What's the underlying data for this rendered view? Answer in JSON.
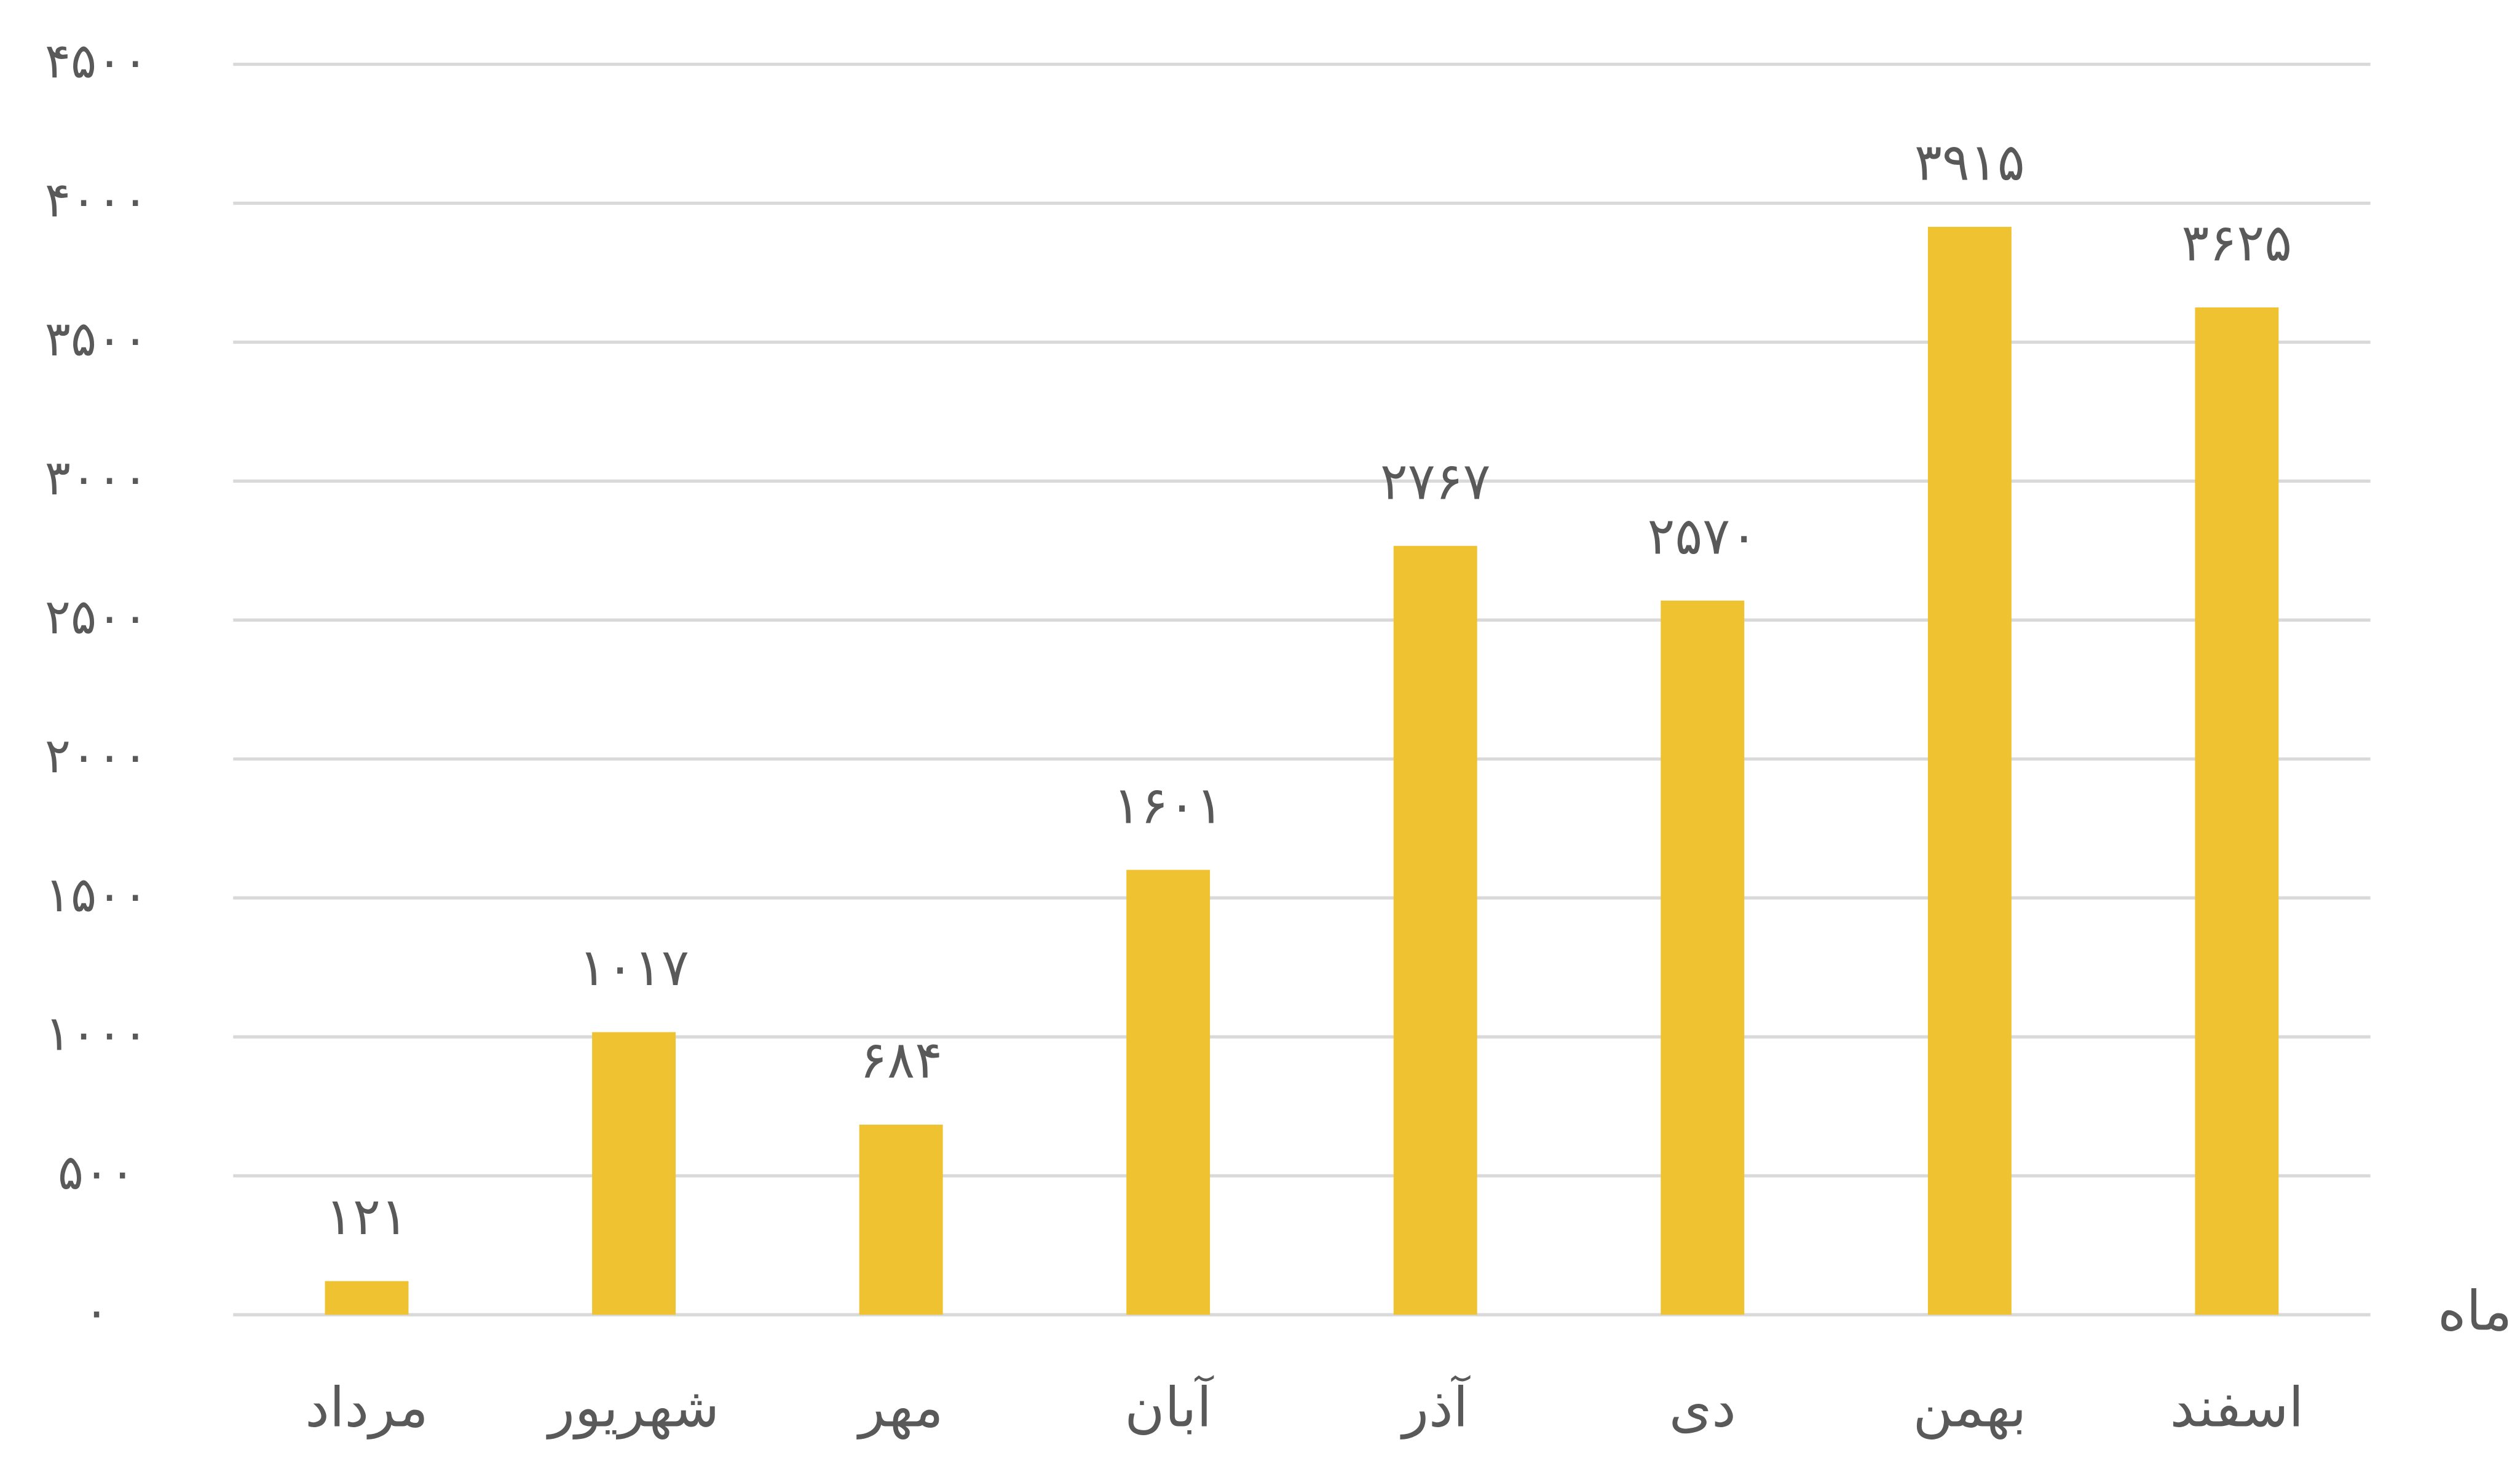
{
  "chart_data": {
    "type": "bar",
    "categories": [
      "مرداد",
      "شهریور",
      "مهر",
      "آبان",
      "آذر",
      "دی",
      "بهمن",
      "اسفند"
    ],
    "values": [
      121,
      1017,
      684,
      1601,
      2767,
      2570,
      3915,
      3625
    ],
    "value_labels": [
      "۱۲۱",
      "۱۰۱۷",
      "۶۸۴",
      "۱۶۰۱",
      "۲۷۶۷",
      "۲۵۷۰",
      "۳۹۱۵",
      "۳۶۲۵"
    ],
    "color": "#eec231",
    "x_label": "ماه",
    "ylim": [
      0,
      4500
    ],
    "yticks": [
      {
        "value": 0,
        "label": "۰"
      },
      {
        "value": 500,
        "label": "۵۰۰"
      },
      {
        "value": 1000,
        "label": "۱۰۰۰"
      },
      {
        "value": 1500,
        "label": "۱۵۰۰"
      },
      {
        "value": 2000,
        "label": "۲۰۰۰"
      },
      {
        "value": 2500,
        "label": "۲۵۰۰"
      },
      {
        "value": 3000,
        "label": "۳۰۰۰"
      },
      {
        "value": 3500,
        "label": "۳۵۰۰"
      },
      {
        "value": 4000,
        "label": "۴۰۰۰"
      },
      {
        "value": 4500,
        "label": "۴۵۰۰"
      }
    ],
    "grid": true
  }
}
